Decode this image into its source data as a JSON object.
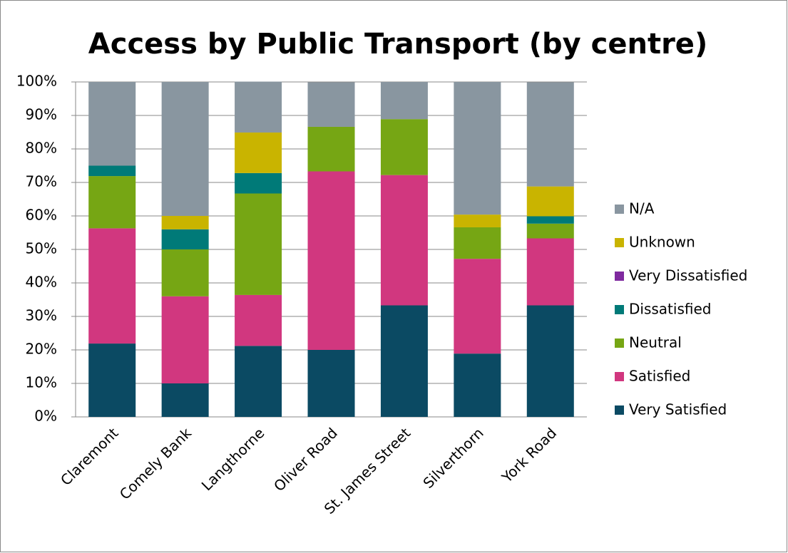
{
  "chart_data": {
    "type": "stacked_bar",
    "title": "Access by Public Transport (by centre)",
    "categories": [
      "Claremont",
      "Comely Bank",
      "Langthorne",
      "Oliver Road",
      "St. James Street",
      "Silverthorn",
      "York Road"
    ],
    "series": [
      {
        "name": "Very Satisfied",
        "color": "#0b4a63",
        "values": [
          21.9,
          10,
          21.2,
          20,
          33.3,
          18.9,
          33.3
        ]
      },
      {
        "name": "Satisfied",
        "color": "#d1377f",
        "values": [
          34.4,
          26,
          15.2,
          53.3,
          38.9,
          28.3,
          20
        ]
      },
      {
        "name": "Neutral",
        "color": "#76a614",
        "values": [
          15.6,
          14,
          30.3,
          13.3,
          16.7,
          9.4,
          4.4
        ]
      },
      {
        "name": "Dissatisfied",
        "color": "#007a78",
        "values": [
          3.1,
          6,
          6.1,
          0,
          0,
          0,
          2.2
        ]
      },
      {
        "name": "Very Dissatisfied",
        "color": "#7f2a9f",
        "values": [
          0,
          0,
          0,
          0,
          0,
          0,
          0
        ]
      },
      {
        "name": "Unknown",
        "color": "#c9b400",
        "values": [
          0,
          4,
          12.1,
          0,
          0,
          3.8,
          8.9
        ]
      },
      {
        "name": "N/A",
        "color": "#8996a0",
        "values": [
          25,
          40,
          15.2,
          13.3,
          11.1,
          39.6,
          31.1
        ]
      }
    ],
    "ylim": [
      0,
      100
    ],
    "yticks": [
      {
        "value": 0,
        "label": "0%"
      },
      {
        "value": 10,
        "label": "10%"
      },
      {
        "value": 20,
        "label": "20%"
      },
      {
        "value": 30,
        "label": "30%"
      },
      {
        "value": 40,
        "label": "40%"
      },
      {
        "value": 50,
        "label": "50%"
      },
      {
        "value": 60,
        "label": "60%"
      },
      {
        "value": 70,
        "label": "70%"
      },
      {
        "value": 80,
        "label": "80%"
      },
      {
        "value": 90,
        "label": "90%"
      },
      {
        "value": 100,
        "label": "100%"
      }
    ],
    "grid": true,
    "legend": "right"
  }
}
